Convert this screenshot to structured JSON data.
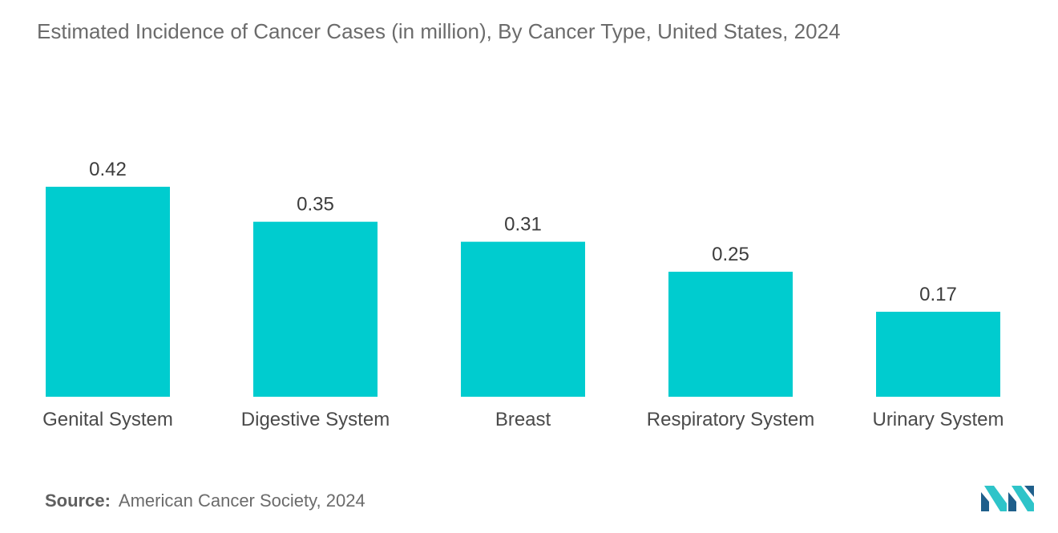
{
  "chart_data": {
    "type": "bar",
    "title": "Estimated Incidence of Cancer Cases (in million), By Cancer Type, United States, 2024",
    "categories": [
      "Genital System",
      "Digestive System",
      "Breast",
      "Respiratory System",
      "Urinary System"
    ],
    "values": [
      0.42,
      0.35,
      0.31,
      0.25,
      0.17
    ],
    "value_labels": [
      "0.42",
      "0.35",
      "0.31",
      "0.25",
      "0.17"
    ],
    "xlabel": "",
    "ylabel": "",
    "ylim": [
      0,
      0.42
    ],
    "grid": false,
    "legend": "none"
  },
  "colors": {
    "bar": "#00cccf",
    "text": "#6b6b6b",
    "logo_dark": "#1f5f8b",
    "logo_light": "#2ec4c9"
  },
  "source": {
    "label": "Source:",
    "text": "American Cancer Society, 2024"
  },
  "logo": {
    "icon": "mordor-intelligence-logo-icon"
  }
}
